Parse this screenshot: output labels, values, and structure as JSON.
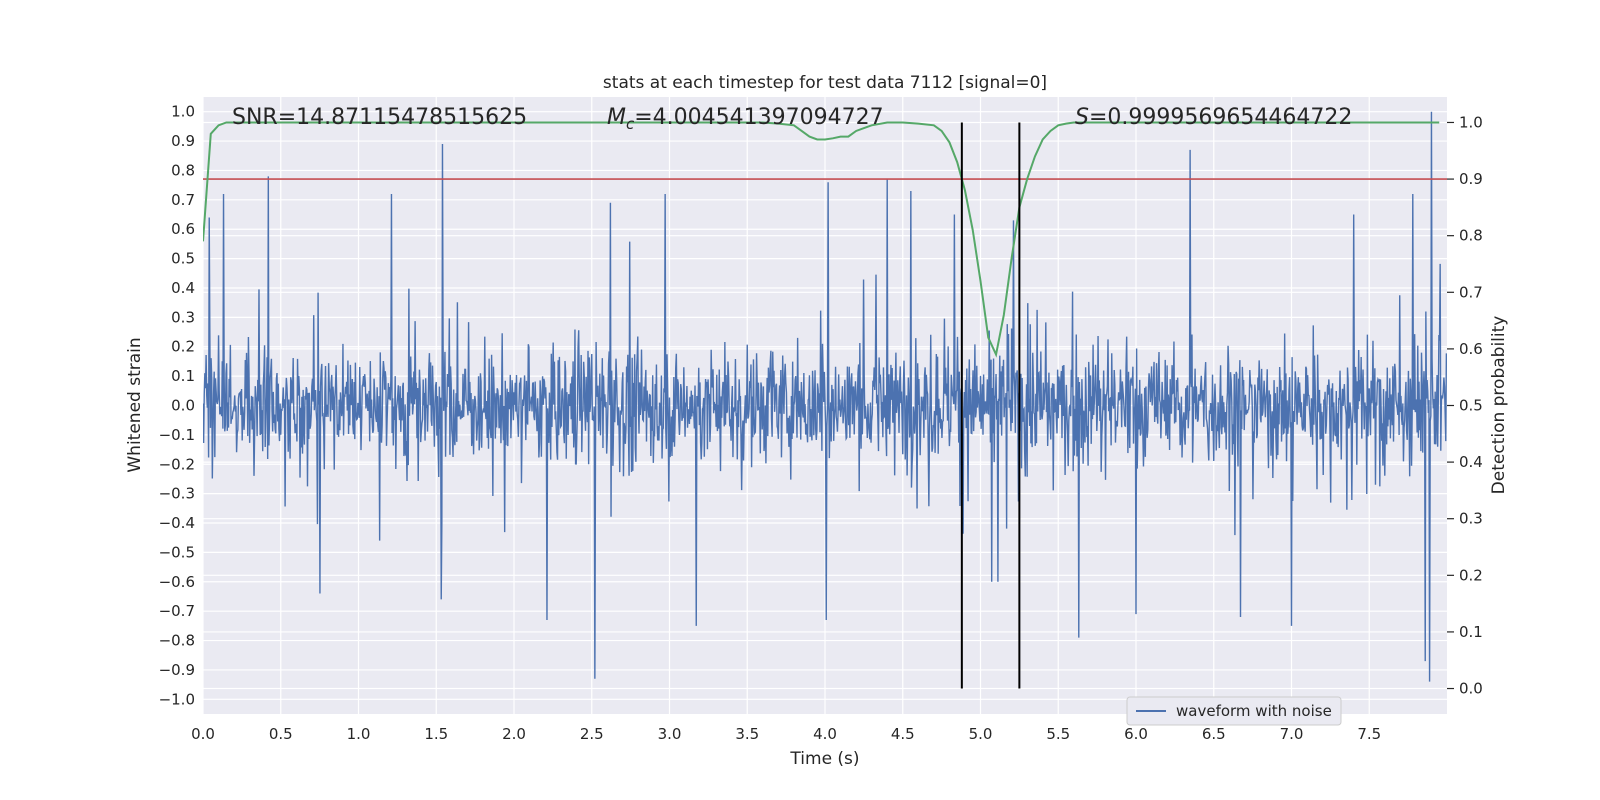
{
  "chart_data": {
    "type": "line",
    "title": "stats at each timestep for test data 7112 [signal=0]",
    "xlabel": "Time (s)",
    "ylabel": "Whitened strain",
    "y2label": "Detection probability",
    "xlim": [
      0.0,
      8.0
    ],
    "ylim": [
      -1.05,
      1.05
    ],
    "y2lim": [
      -0.045,
      1.045
    ],
    "xticks": [
      0.0,
      0.5,
      1.0,
      1.5,
      2.0,
      2.5,
      3.0,
      3.5,
      4.0,
      4.5,
      5.0,
      5.5,
      6.0,
      6.5,
      7.0,
      7.5
    ],
    "xtick_labels": [
      "0.0",
      "0.5",
      "1.0",
      "1.5",
      "2.0",
      "2.5",
      "3.0",
      "3.5",
      "4.0",
      "4.5",
      "5.0",
      "5.5",
      "6.0",
      "6.5",
      "7.0",
      "7.5"
    ],
    "yticks": [
      1.0,
      0.9,
      0.8,
      0.7,
      0.6,
      0.5,
      0.4,
      0.3,
      0.2,
      0.1,
      0.0,
      -0.1,
      -0.2,
      -0.3,
      -0.4,
      -0.5,
      -0.6,
      -0.7,
      -0.8,
      -0.9,
      -1.0
    ],
    "ytick_labels": [
      "1.0",
      "0.9",
      "0.8",
      "0.7",
      "0.6",
      "0.5",
      "0.4",
      "0.3",
      "0.2",
      "0.1",
      "0.0",
      "−0.1",
      "−0.2",
      "−0.3",
      "−0.4",
      "−0.5",
      "−0.6",
      "−0.7",
      "−0.8",
      "−0.9",
      "−1.0"
    ],
    "y2ticks": [
      1.0,
      0.9,
      0.8,
      0.7,
      0.6,
      0.5,
      0.4,
      0.3,
      0.2,
      0.1,
      0.0
    ],
    "y2tick_labels": [
      "1.0",
      "0.9",
      "0.8",
      "0.7",
      "0.6",
      "0.5",
      "0.4",
      "0.3",
      "0.2",
      "0.1",
      "0.0"
    ],
    "annotations": {
      "snr": "SNR=14.87115478515625",
      "mc_symbol": "M",
      "mc_sub": "c",
      "mc_value": "=4.004541397094727",
      "s_symbol": "S",
      "s_value": "=0.9999569654464722"
    },
    "legend": {
      "label": "waveform with noise",
      "position": "lower-right"
    },
    "threshold": {
      "y": 0.9,
      "axis": "right",
      "color": "#c44e52"
    },
    "vlines": [
      4.88,
      5.25
    ],
    "waveform": {
      "name": "waveform with noise",
      "color": "#4c72b0",
      "duration_s": 8.0,
      "samples": 2000,
      "typical_amplitude": 0.35,
      "peaks": [
        {
          "t": 0.04,
          "v": 0.64
        },
        {
          "t": 0.13,
          "v": 0.72
        },
        {
          "t": 0.42,
          "v": 0.78
        },
        {
          "t": 0.75,
          "v": -0.64
        },
        {
          "t": 1.21,
          "v": 0.72
        },
        {
          "t": 1.54,
          "v": 0.89
        },
        {
          "t": 1.53,
          "v": -0.66
        },
        {
          "t": 2.21,
          "v": -0.73
        },
        {
          "t": 2.52,
          "v": -0.93
        },
        {
          "t": 2.62,
          "v": 0.69
        },
        {
          "t": 2.97,
          "v": 0.72
        },
        {
          "t": 3.17,
          "v": -0.75
        },
        {
          "t": 4.02,
          "v": 0.76
        },
        {
          "t": 4.01,
          "v": -0.73
        },
        {
          "t": 4.4,
          "v": 0.77
        },
        {
          "t": 4.55,
          "v": 0.73
        },
        {
          "t": 4.83,
          "v": 0.65
        },
        {
          "t": 5.07,
          "v": -0.6
        },
        {
          "t": 5.11,
          "v": -0.6
        },
        {
          "t": 5.21,
          "v": 0.63
        },
        {
          "t": 5.63,
          "v": -0.79
        },
        {
          "t": 6.0,
          "v": -0.71
        },
        {
          "t": 6.35,
          "v": 0.87
        },
        {
          "t": 6.67,
          "v": -0.72
        },
        {
          "t": 7.0,
          "v": -0.75
        },
        {
          "t": 7.4,
          "v": 0.65
        },
        {
          "t": 7.78,
          "v": 0.72
        },
        {
          "t": 7.86,
          "v": -0.87
        },
        {
          "t": 7.9,
          "v": 1.0
        },
        {
          "t": 7.89,
          "v": -0.94
        }
      ]
    },
    "detection_probability": {
      "name": "detection probability",
      "color": "#55a868",
      "axis": "right",
      "x": [
        0.0,
        0.05,
        0.1,
        0.15,
        0.5,
        1.0,
        2.0,
        3.0,
        3.6,
        3.7,
        3.8,
        3.85,
        3.9,
        3.95,
        4.0,
        4.05,
        4.1,
        4.15,
        4.2,
        4.3,
        4.4,
        4.5,
        4.6,
        4.7,
        4.75,
        4.8,
        4.85,
        4.9,
        4.95,
        5.0,
        5.05,
        5.1,
        5.15,
        5.2,
        5.25,
        5.3,
        5.35,
        5.4,
        5.45,
        5.5,
        5.55,
        5.6,
        5.7,
        6.0,
        7.0,
        7.5,
        7.95
      ],
      "y": [
        0.79,
        0.98,
        0.995,
        1.0,
        1.0,
        1.0,
        1.0,
        1.0,
        1.0,
        0.998,
        0.995,
        0.985,
        0.975,
        0.97,
        0.97,
        0.972,
        0.975,
        0.975,
        0.985,
        0.995,
        1.0,
        1.0,
        0.998,
        0.995,
        0.985,
        0.965,
        0.93,
        0.88,
        0.81,
        0.72,
        0.62,
        0.59,
        0.66,
        0.76,
        0.85,
        0.9,
        0.94,
        0.97,
        0.985,
        0.995,
        0.998,
        1.0,
        1.0,
        1.0,
        1.0,
        1.0,
        1.0
      ]
    }
  }
}
